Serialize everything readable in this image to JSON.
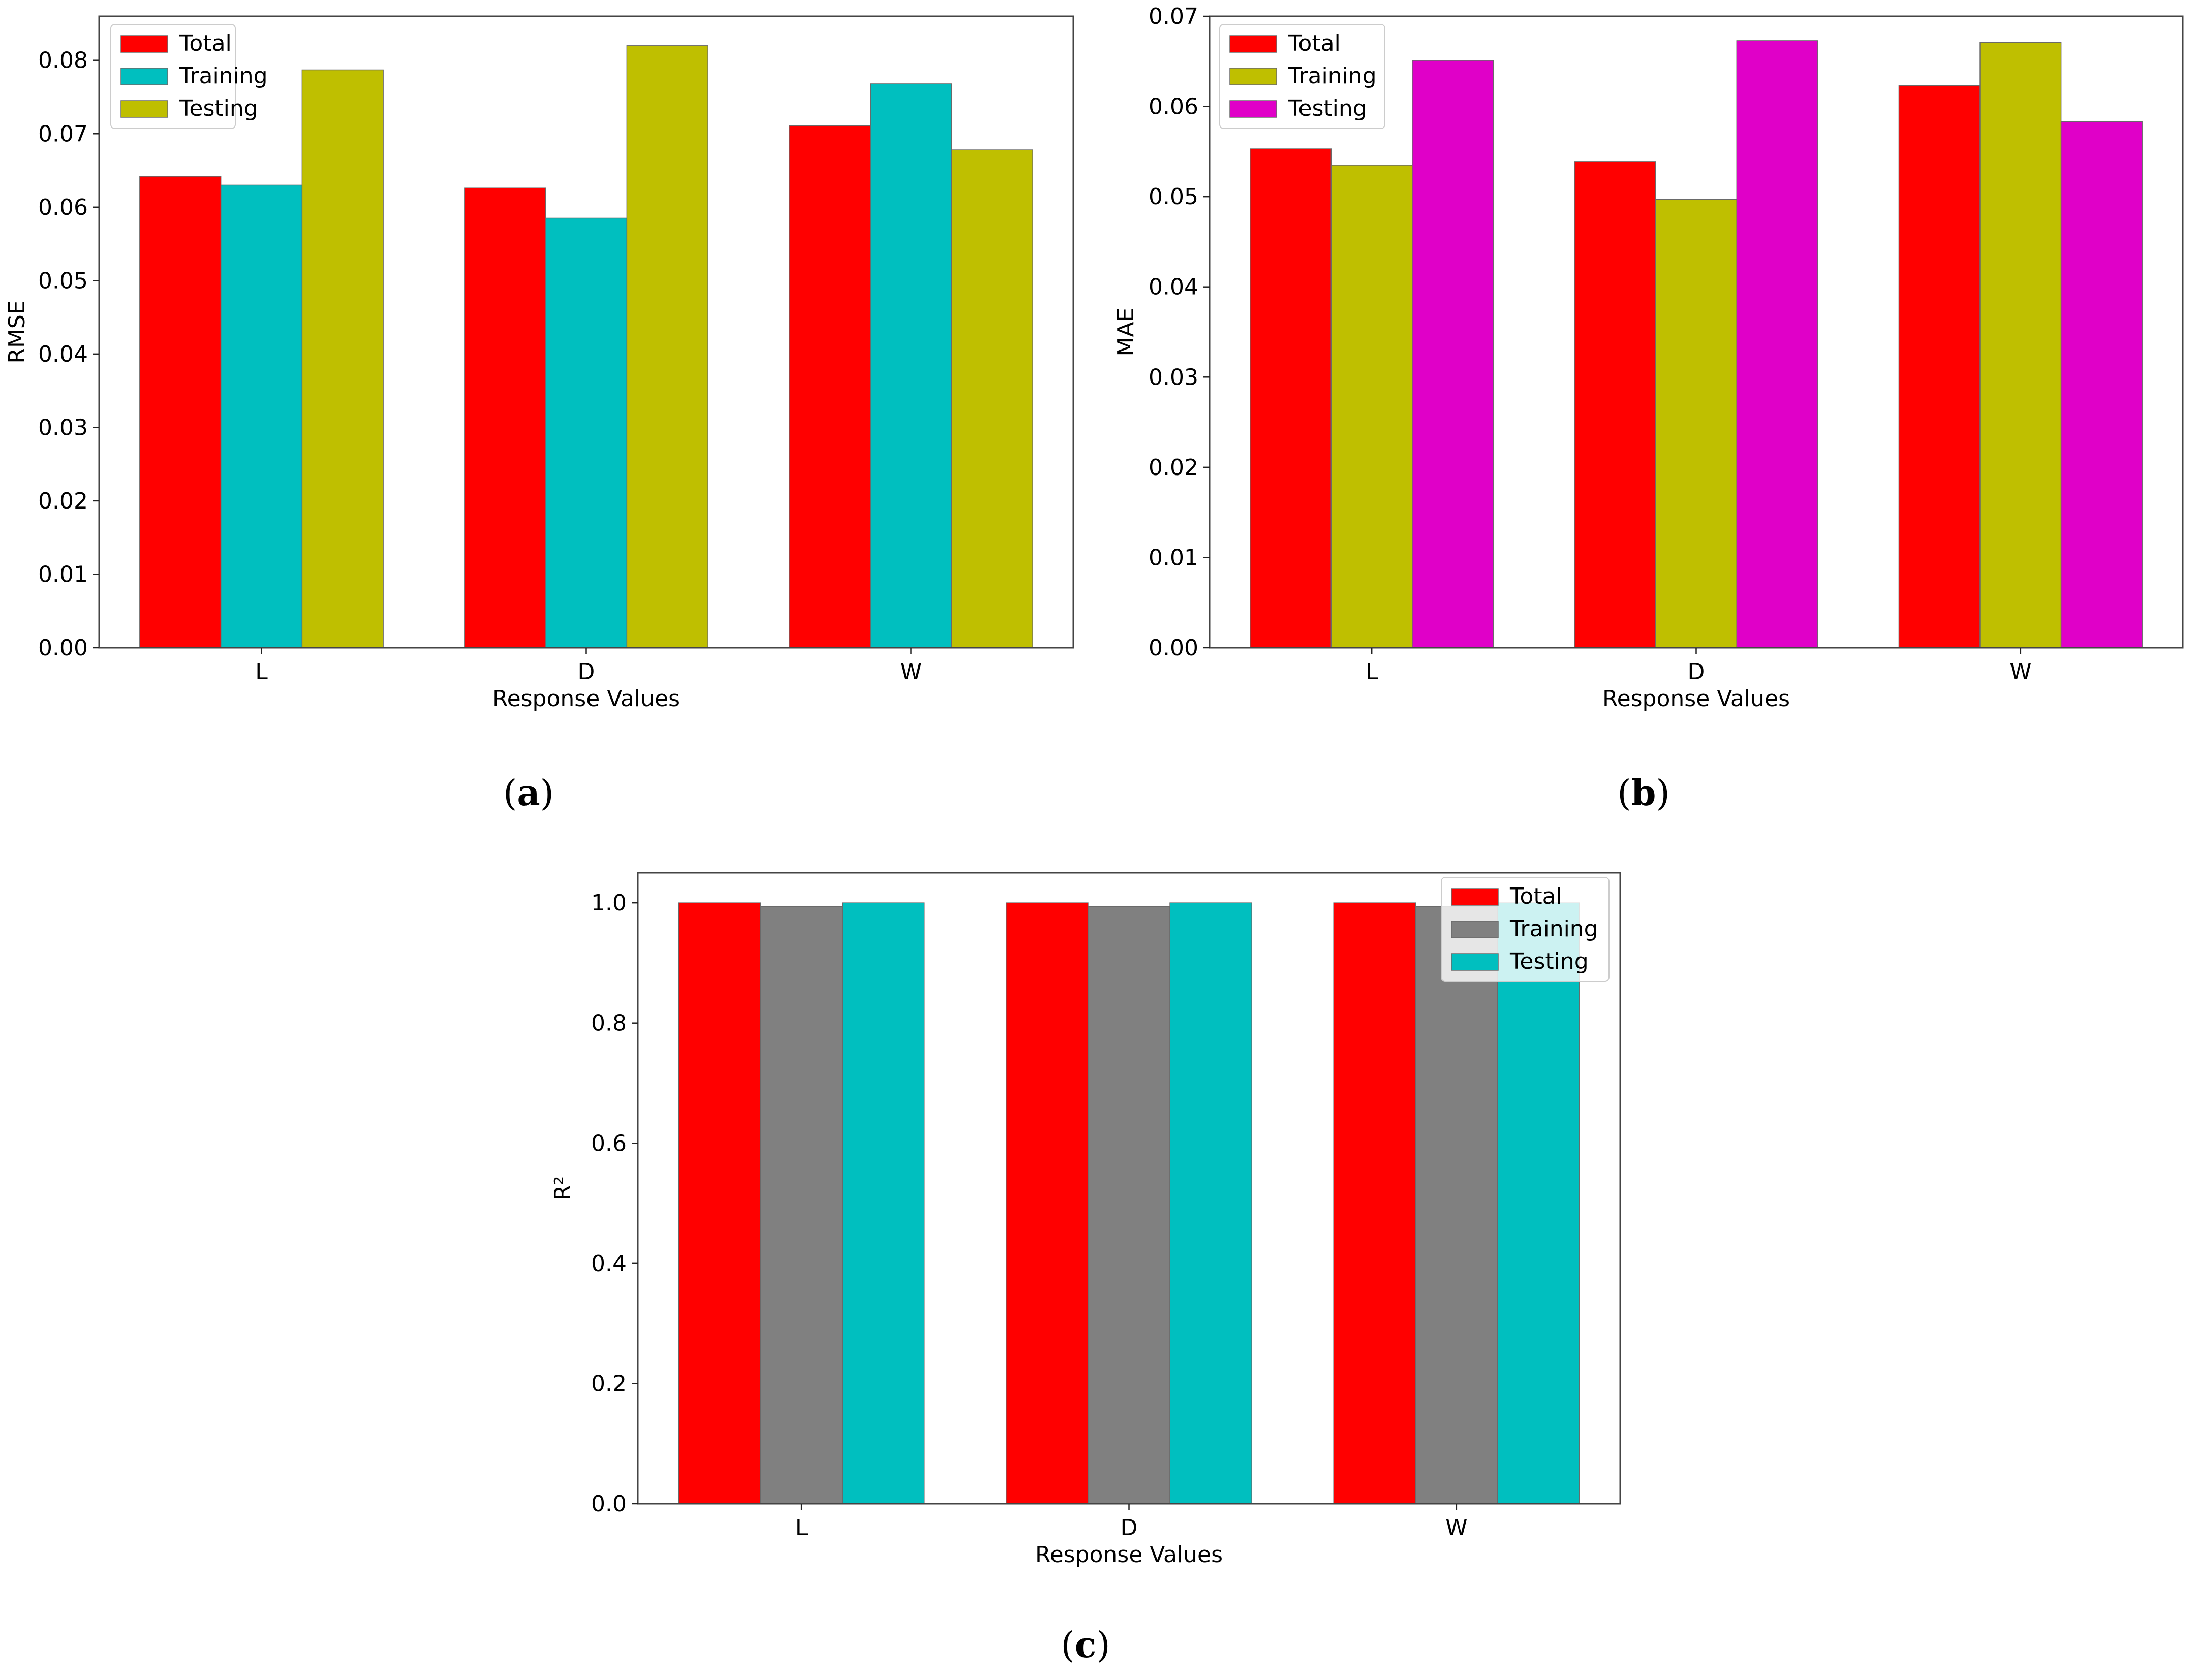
{
  "chart_data": [
    {
      "type": "bar",
      "panel": "(a)",
      "panel_letter": "a",
      "title": "",
      "xlabel": "Response Values",
      "ylabel": "RMSE",
      "categories": [
        "L",
        "D",
        "W"
      ],
      "ylim": [
        0,
        0.086
      ],
      "yticks": [
        0.0,
        0.01,
        0.02,
        0.03,
        0.04,
        0.05,
        0.06,
        0.07,
        0.08
      ],
      "ytick_labels": [
        "0.00",
        "0.01",
        "0.02",
        "0.03",
        "0.04",
        "0.05",
        "0.06",
        "0.07",
        "0.08"
      ],
      "legend_position": "top-left",
      "grid": false,
      "series": [
        {
          "name": "Total",
          "color": "#ff0000",
          "values": [
            0.0642,
            0.0626,
            0.0711
          ]
        },
        {
          "name": "Training",
          "color": "#00bfbf",
          "values": [
            0.063,
            0.0585,
            0.0768
          ]
        },
        {
          "name": "Testing",
          "color": "#bfbf00",
          "values": [
            0.0787,
            0.082,
            0.0678
          ]
        }
      ]
    },
    {
      "type": "bar",
      "panel": "(b)",
      "panel_letter": "b",
      "title": "",
      "xlabel": "Response Values",
      "ylabel": "MAE",
      "categories": [
        "L",
        "D",
        "W"
      ],
      "ylim": [
        0,
        0.07
      ],
      "yticks": [
        0.0,
        0.01,
        0.02,
        0.03,
        0.04,
        0.05,
        0.06,
        0.07
      ],
      "ytick_labels": [
        "0.00",
        "0.01",
        "0.02",
        "0.03",
        "0.04",
        "0.05",
        "0.06",
        "0.07"
      ],
      "legend_position": "top-left",
      "grid": false,
      "series": [
        {
          "name": "Total",
          "color": "#ff0000",
          "values": [
            0.0553,
            0.0539,
            0.0623
          ]
        },
        {
          "name": "Training",
          "color": "#bfbf00",
          "values": [
            0.0535,
            0.0497,
            0.0671
          ]
        },
        {
          "name": "Testing",
          "color": "#e000c8",
          "values": [
            0.0651,
            0.0673,
            0.0583
          ]
        }
      ]
    },
    {
      "type": "bar",
      "panel": "(c)",
      "panel_letter": "c",
      "title": "",
      "xlabel": "Response Values",
      "ylabel": "R²",
      "categories": [
        "L",
        "D",
        "W"
      ],
      "ylim": [
        0,
        1.05
      ],
      "yticks": [
        0.0,
        0.2,
        0.4,
        0.6,
        0.8,
        1.0
      ],
      "ytick_labels": [
        "0.0",
        "0.2",
        "0.4",
        "0.6",
        "0.8",
        "1.0"
      ],
      "legend_position": "top-right",
      "grid": false,
      "series": [
        {
          "name": "Total",
          "color": "#ff0000",
          "values": [
            1.0,
            1.0,
            1.0
          ]
        },
        {
          "name": "Training",
          "color": "#808080",
          "values": [
            0.994,
            0.994,
            0.994
          ]
        },
        {
          "name": "Testing",
          "color": "#00bfbf",
          "values": [
            1.0,
            1.0,
            1.0
          ]
        }
      ]
    }
  ]
}
